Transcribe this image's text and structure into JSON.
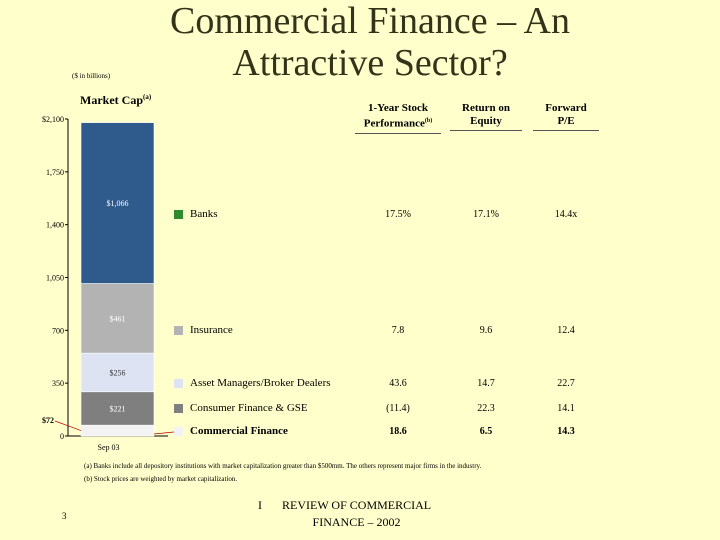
{
  "title_line1": "Commercial Finance – An",
  "title_line2": "Attractive Sector?",
  "units": "($ in billions)",
  "market_cap_label": "Market Cap",
  "market_cap_sup": "(a)",
  "columns": [
    {
      "line1": "1-Year Stock",
      "line2": "Performance",
      "sup": "(b)"
    },
    {
      "line1": "Return on",
      "line2": "Equity",
      "sup": ""
    },
    {
      "line1": "Forward",
      "line2": "P/E",
      "sup": ""
    }
  ],
  "rows": [
    {
      "label": "Banks",
      "color": "#2E8B2E",
      "perf": "17.5%",
      "roe": "17.1%",
      "pe": "14.4x",
      "bold": false
    },
    {
      "label": "Insurance",
      "color": "#B3B3B3",
      "perf": "7.8",
      "roe": "9.6",
      "pe": "12.4",
      "bold": false
    },
    {
      "label": "Asset Managers/Broker Dealers",
      "color": "#DDE3F3",
      "perf": "43.6",
      "roe": "14.7",
      "pe": "22.7",
      "bold": false
    },
    {
      "label": "Consumer Finance & GSE",
      "color": "#7F7F7F",
      "perf": "(11.4)",
      "roe": "22.3",
      "pe": "14.1",
      "bold": false
    },
    {
      "label": "Commercial Finance",
      "color": "#F3F3F3",
      "perf": "18.6",
      "roe": "6.5",
      "pe": "14.3",
      "bold": true
    }
  ],
  "chart_data": {
    "type": "bar",
    "stacked": true,
    "categories": [
      "Sep 03"
    ],
    "yticks": [
      "0",
      "350",
      "700",
      "1,050",
      "1,400",
      "1,750",
      "$2,100"
    ],
    "ylim": [
      0,
      2100
    ],
    "series": [
      {
        "name": "Commercial Finance",
        "value": 72,
        "label": "$72",
        "color": "#F3F3F3"
      },
      {
        "name": "Consumer Finance & GSE",
        "value": 221,
        "label": "$221",
        "color": "#7F7F7F"
      },
      {
        "name": "Asset Managers/Broker Dealers",
        "value": 256,
        "label": "$256",
        "color": "#DDE3F3"
      },
      {
        "name": "Insurance",
        "value": 461,
        "label": "$461",
        "color": "#B3B3B3"
      },
      {
        "name": "Banks",
        "value": 1066,
        "label": "$1,066",
        "color": "#2E5A8C"
      }
    ]
  },
  "notes": [
    "(a) Banks include all depository institutions with market capitalization greater than $500mm. The others represent major firms in the industry.",
    "(b) Stock prices are weighted by market capitalization."
  ],
  "page_number": "3",
  "separator": "I",
  "footer_line1": "REVIEW OF COMMERCIAL",
  "footer_line2": "FINANCE – 2002"
}
